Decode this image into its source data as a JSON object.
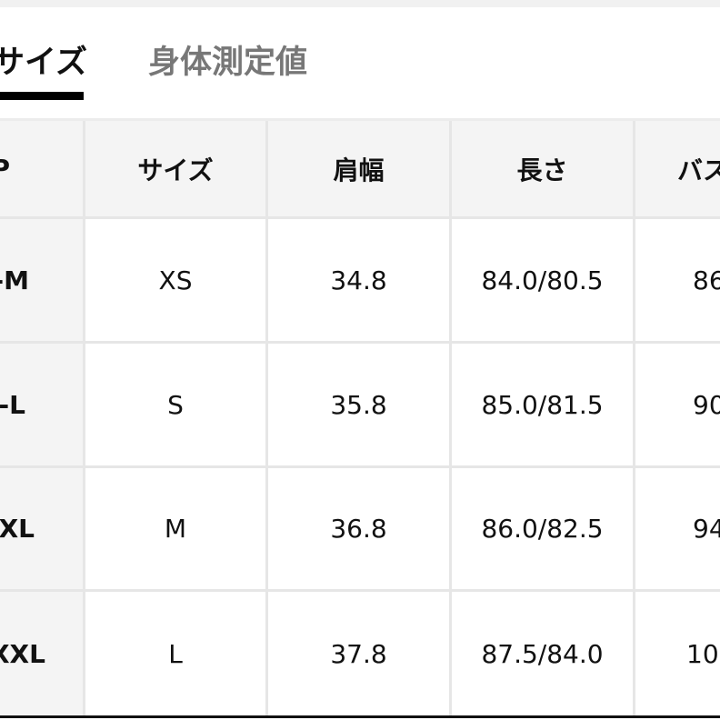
{
  "tabs": [
    {
      "label": "サイズ",
      "active": true
    },
    {
      "label": "身体測定値",
      "active": false
    }
  ],
  "table": {
    "headers": [
      "P",
      "サイズ",
      "肩幅",
      "長さ",
      "バス"
    ],
    "rows": [
      [
        "-M",
        "XS",
        "34.8",
        "84.0/80.5",
        "86"
      ],
      [
        "-L",
        "S",
        "35.8",
        "85.0/81.5",
        "90"
      ],
      [
        "XL",
        "M",
        "36.8",
        "86.0/82.5",
        "94"
      ],
      [
        "XXL",
        "L",
        "37.8",
        "87.5/84.0",
        "10"
      ]
    ]
  },
  "colors": {
    "active_tab": "#111111",
    "inactive_tab": "#777777",
    "header_bg": "#f4f4f4",
    "grid": "#e6e6e6"
  }
}
